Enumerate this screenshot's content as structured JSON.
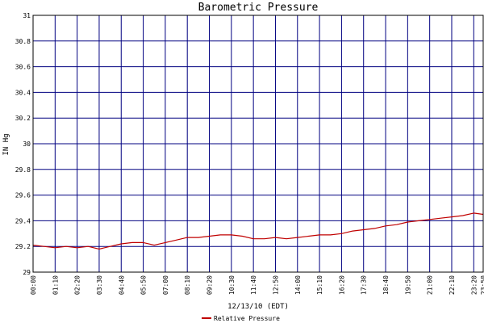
{
  "chart_data": {
    "type": "line",
    "title": "Barometric Pressure",
    "xlabel": "12/13/10 (EDT)",
    "ylabel": "IN Hg",
    "ylim": [
      29,
      31
    ],
    "y_ticks": [
      "29",
      "29.2",
      "29.4",
      "29.6",
      "29.8",
      "30",
      "30.2",
      "30.4",
      "30.6",
      "30.8",
      "31"
    ],
    "x_ticks": [
      "00:00",
      "01:10",
      "02:20",
      "03:30",
      "04:40",
      "05:50",
      "07:00",
      "08:10",
      "09:20",
      "10:30",
      "11:40",
      "12:50",
      "14:00",
      "15:10",
      "16:20",
      "17:30",
      "18:40",
      "19:50",
      "21:00",
      "22:10",
      "23:20",
      "23:50"
    ],
    "grid": true,
    "legend_position": "bottom-center",
    "series": [
      {
        "name": "Relative Pressure",
        "color": "#c00000",
        "x": [
          "00:00",
          "00:35",
          "01:10",
          "01:45",
          "02:20",
          "02:55",
          "03:30",
          "04:05",
          "04:40",
          "05:15",
          "05:50",
          "06:25",
          "07:00",
          "07:35",
          "08:10",
          "08:45",
          "09:20",
          "09:55",
          "10:30",
          "11:05",
          "11:40",
          "12:15",
          "12:50",
          "13:25",
          "14:00",
          "14:35",
          "15:10",
          "15:45",
          "16:20",
          "16:55",
          "17:30",
          "18:05",
          "18:40",
          "19:15",
          "19:50",
          "20:25",
          "21:00",
          "21:35",
          "22:10",
          "22:45",
          "23:20",
          "23:50"
        ],
        "values": [
          29.21,
          29.2,
          29.19,
          29.2,
          29.19,
          29.2,
          29.18,
          29.2,
          29.22,
          29.23,
          29.23,
          29.21,
          29.23,
          29.25,
          29.27,
          29.27,
          29.28,
          29.29,
          29.29,
          29.28,
          29.26,
          29.26,
          29.27,
          29.26,
          29.27,
          29.28,
          29.29,
          29.29,
          29.3,
          29.32,
          29.33,
          29.34,
          29.36,
          29.37,
          29.39,
          29.4,
          29.41,
          29.42,
          29.43,
          29.44,
          29.46,
          29.45
        ]
      }
    ]
  }
}
